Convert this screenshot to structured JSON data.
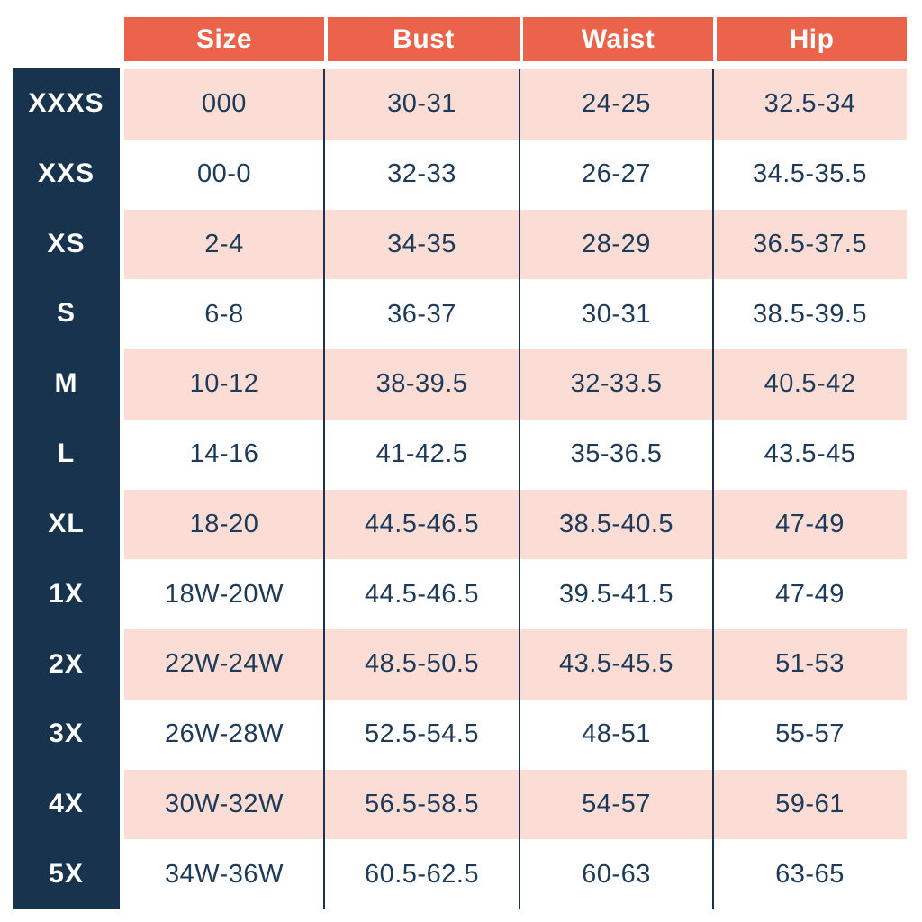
{
  "chart_data": {
    "type": "table",
    "columns": [
      "Size",
      "Bust",
      "Waist",
      "Hip"
    ],
    "row_labels": [
      "XXXS",
      "XXS",
      "XS",
      "S",
      "M",
      "L",
      "XL",
      "1X",
      "2X",
      "3X",
      "4X",
      "5X"
    ],
    "rows": [
      [
        "000",
        "30-31",
        "24-25",
        "32.5-34"
      ],
      [
        "00-0",
        "32-33",
        "26-27",
        "34.5-35.5"
      ],
      [
        "2-4",
        "34-35",
        "28-29",
        "36.5-37.5"
      ],
      [
        "6-8",
        "36-37",
        "30-31",
        "38.5-39.5"
      ],
      [
        "10-12",
        "38-39.5",
        "32-33.5",
        "40.5-42"
      ],
      [
        "14-16",
        "41-42.5",
        "35-36.5",
        "43.5-45"
      ],
      [
        "18-20",
        "44.5-46.5",
        "38.5-40.5",
        "47-49"
      ],
      [
        "18W-20W",
        "44.5-46.5",
        "39.5-41.5",
        "47-49"
      ],
      [
        "22W-24W",
        "48.5-50.5",
        "43.5-45.5",
        "51-53"
      ],
      [
        "26W-28W",
        "52.5-54.5",
        "48-51",
        "55-57"
      ],
      [
        "30W-32W",
        "56.5-58.5",
        "54-57",
        "59-61"
      ],
      [
        "34W-36W",
        "60.5-62.5",
        "60-63",
        "63-65"
      ]
    ],
    "colors": {
      "header_bg": "#EC634B",
      "header_text": "#FFFFFF",
      "row_label_bg": "#17334D",
      "row_label_text": "#FFFFFF",
      "row_alt_bg": "#FBDDD5",
      "row_bg": "#FFFFFF",
      "cell_text": "#1E3A59",
      "divider": "#1B3350"
    }
  }
}
